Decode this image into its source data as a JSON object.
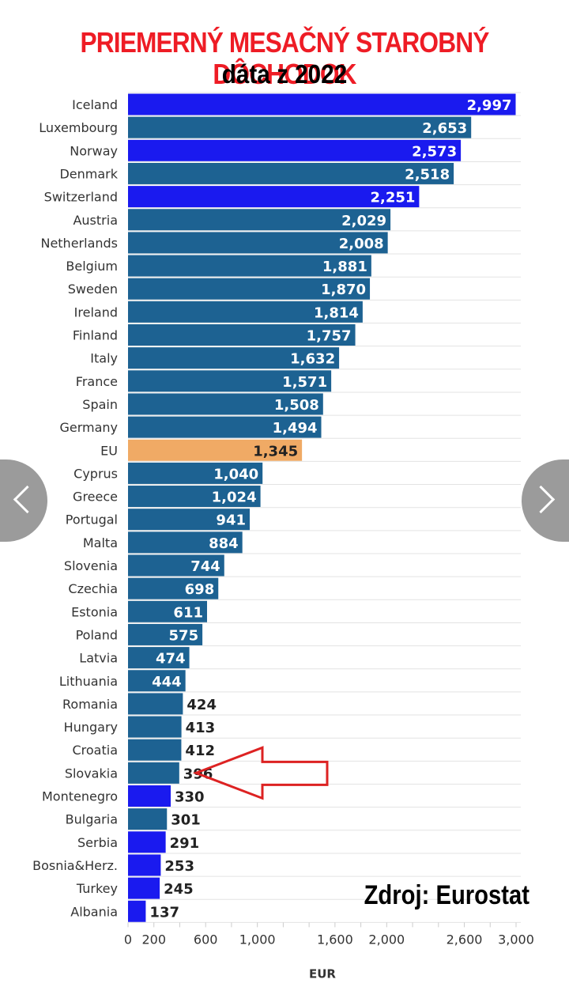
{
  "chart_data": {
    "type": "bar",
    "orientation": "horizontal",
    "title": "PRIEMERNÝ MESAČNÝ STAROBNÝ DÔCHODOK",
    "subtitle": "dáta z 2022",
    "xlabel": "EUR",
    "source": "Zdroj: Eurostat",
    "xlim": [
      0,
      3000
    ],
    "xticks": [
      {
        "value": 0,
        "label": "0"
      },
      {
        "value": 200,
        "label": "200"
      },
      {
        "value": 600,
        "label": "600"
      },
      {
        "value": 1000,
        "label": "1,000"
      },
      {
        "value": 1600,
        "label": "1,600"
      },
      {
        "value": 2000,
        "label": "2,000"
      },
      {
        "value": 2600,
        "label": "2,600"
      },
      {
        "value": 3000,
        "label": "3,000"
      }
    ],
    "grid": true,
    "colors": {
      "eu_member": "#1d6292",
      "non_eu": "#1a1aef",
      "eu_average": "#f0aa65",
      "arrow": "#dd2222"
    },
    "highlight": "Slovakia",
    "bars": [
      {
        "label": "Iceland",
        "value": 2997,
        "value_label": "2,997",
        "group": "non_eu"
      },
      {
        "label": "Luxembourg",
        "value": 2653,
        "value_label": "2,653",
        "group": "eu_member"
      },
      {
        "label": "Norway",
        "value": 2573,
        "value_label": "2,573",
        "group": "non_eu"
      },
      {
        "label": "Denmark",
        "value": 2518,
        "value_label": "2,518",
        "group": "eu_member"
      },
      {
        "label": "Switzerland",
        "value": 2251,
        "value_label": "2,251",
        "group": "non_eu"
      },
      {
        "label": "Austria",
        "value": 2029,
        "value_label": "2,029",
        "group": "eu_member"
      },
      {
        "label": "Netherlands",
        "value": 2008,
        "value_label": "2,008",
        "group": "eu_member"
      },
      {
        "label": "Belgium",
        "value": 1881,
        "value_label": "1,881",
        "group": "eu_member"
      },
      {
        "label": "Sweden",
        "value": 1870,
        "value_label": "1,870",
        "group": "eu_member"
      },
      {
        "label": "Ireland",
        "value": 1814,
        "value_label": "1,814",
        "group": "eu_member"
      },
      {
        "label": "Finland",
        "value": 1757,
        "value_label": "1,757",
        "group": "eu_member"
      },
      {
        "label": "Italy",
        "value": 1632,
        "value_label": "1,632",
        "group": "eu_member"
      },
      {
        "label": "France",
        "value": 1571,
        "value_label": "1,571",
        "group": "eu_member"
      },
      {
        "label": "Spain",
        "value": 1508,
        "value_label": "1,508",
        "group": "eu_member"
      },
      {
        "label": "Germany",
        "value": 1494,
        "value_label": "1,494",
        "group": "eu_member"
      },
      {
        "label": "EU",
        "value": 1345,
        "value_label": "1,345",
        "group": "eu_average"
      },
      {
        "label": "Cyprus",
        "value": 1040,
        "value_label": "1,040",
        "group": "eu_member"
      },
      {
        "label": "Greece",
        "value": 1024,
        "value_label": "1,024",
        "group": "eu_member"
      },
      {
        "label": "Portugal",
        "value": 941,
        "value_label": "941",
        "group": "eu_member"
      },
      {
        "label": "Malta",
        "value": 884,
        "value_label": "884",
        "group": "eu_member"
      },
      {
        "label": "Slovenia",
        "value": 744,
        "value_label": "744",
        "group": "eu_member"
      },
      {
        "label": "Czechia",
        "value": 698,
        "value_label": "698",
        "group": "eu_member"
      },
      {
        "label": "Estonia",
        "value": 611,
        "value_label": "611",
        "group": "eu_member"
      },
      {
        "label": "Poland",
        "value": 575,
        "value_label": "575",
        "group": "eu_member"
      },
      {
        "label": "Latvia",
        "value": 474,
        "value_label": "474",
        "group": "eu_member"
      },
      {
        "label": "Lithuania",
        "value": 444,
        "value_label": "444",
        "group": "eu_member"
      },
      {
        "label": "Romania",
        "value": 424,
        "value_label": "424",
        "group": "eu_member"
      },
      {
        "label": "Hungary",
        "value": 413,
        "value_label": "413",
        "group": "eu_member"
      },
      {
        "label": "Croatia",
        "value": 412,
        "value_label": "412",
        "group": "eu_member"
      },
      {
        "label": "Slovakia",
        "value": 396,
        "value_label": "396",
        "group": "eu_member"
      },
      {
        "label": "Montenegro",
        "value": 330,
        "value_label": "330",
        "group": "non_eu"
      },
      {
        "label": "Bulgaria",
        "value": 301,
        "value_label": "301",
        "group": "eu_member"
      },
      {
        "label": "Serbia",
        "value": 291,
        "value_label": "291",
        "group": "non_eu"
      },
      {
        "label": "Bosnia&Herz.",
        "value": 253,
        "value_label": "253",
        "group": "non_eu"
      },
      {
        "label": "Turkey",
        "value": 245,
        "value_label": "245",
        "group": "non_eu"
      },
      {
        "label": "Albania",
        "value": 137,
        "value_label": "137",
        "group": "non_eu"
      }
    ]
  },
  "navigation": {
    "previous_icon": "chevron-left-icon",
    "next_icon": "chevron-right-icon"
  }
}
